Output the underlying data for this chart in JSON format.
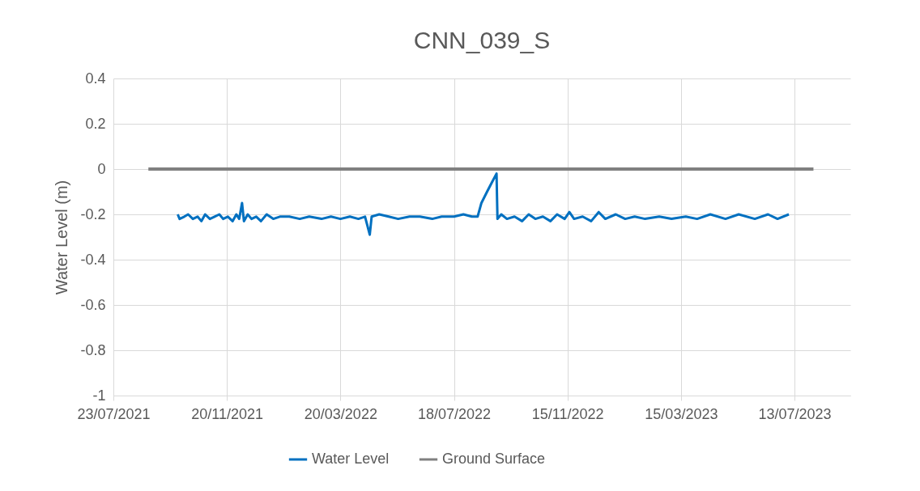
{
  "chart_data": {
    "type": "line",
    "title": "CNN_039_S",
    "ylabel": "Water Level (m)",
    "xlim": [
      "2021-07-23",
      "2023-09-10"
    ],
    "xticks": [
      {
        "value": "2021-07-23",
        "label": "23/07/2021"
      },
      {
        "value": "2021-11-20",
        "label": "20/11/2021"
      },
      {
        "value": "2022-03-20",
        "label": "20/03/2022"
      },
      {
        "value": "2022-07-18",
        "label": "18/07/2022"
      },
      {
        "value": "2022-11-15",
        "label": "15/11/2022"
      },
      {
        "value": "2023-03-15",
        "label": "15/03/2023"
      },
      {
        "value": "2023-07-13",
        "label": "13/07/2023"
      }
    ],
    "ylim": [
      -1,
      0.4
    ],
    "yticks": [
      -1,
      -0.8,
      -0.6,
      -0.4,
      -0.2,
      0,
      0.2,
      0.4
    ],
    "grid": true,
    "legend": "bottom",
    "series": [
      {
        "name": "Water Level",
        "color": "#0070c0",
        "x": [
          "2021-09-29",
          "2021-10-01",
          "2021-10-06",
          "2021-10-10",
          "2021-10-15",
          "2021-10-20",
          "2021-10-24",
          "2021-10-28",
          "2021-11-02",
          "2021-11-07",
          "2021-11-12",
          "2021-11-16",
          "2021-11-21",
          "2021-11-26",
          "2021-11-30",
          "2021-12-03",
          "2021-12-06",
          "2021-12-08",
          "2021-12-12",
          "2021-12-16",
          "2021-12-21",
          "2021-12-26",
          "2022-01-01",
          "2022-01-08",
          "2022-01-15",
          "2022-01-25",
          "2022-02-05",
          "2022-02-15",
          "2022-02-28",
          "2022-03-10",
          "2022-03-20",
          "2022-03-30",
          "2022-04-08",
          "2022-04-15",
          "2022-04-20",
          "2022-04-22",
          "2022-04-30",
          "2022-05-10",
          "2022-05-20",
          "2022-06-01",
          "2022-06-12",
          "2022-06-25",
          "2022-07-05",
          "2022-07-18",
          "2022-07-28",
          "2022-08-06",
          "2022-08-12",
          "2022-08-16",
          "2022-08-22",
          "2022-08-27",
          "2022-09-01",
          "2022-09-02",
          "2022-09-06",
          "2022-09-12",
          "2022-09-20",
          "2022-09-28",
          "2022-10-05",
          "2022-10-12",
          "2022-10-20",
          "2022-10-28",
          "2022-11-04",
          "2022-11-12",
          "2022-11-17",
          "2022-11-22",
          "2022-12-01",
          "2022-12-10",
          "2022-12-18",
          "2022-12-25",
          "2023-01-05",
          "2023-01-15",
          "2023-01-25",
          "2023-02-05",
          "2023-02-20",
          "2023-03-05",
          "2023-03-20",
          "2023-04-01",
          "2023-04-15",
          "2023-05-01",
          "2023-05-15",
          "2023-06-01",
          "2023-06-15",
          "2023-06-25",
          "2023-07-07"
        ],
        "values": [
          -0.2,
          -0.22,
          -0.21,
          -0.2,
          -0.22,
          -0.21,
          -0.23,
          -0.2,
          -0.22,
          -0.21,
          -0.2,
          -0.22,
          -0.21,
          -0.23,
          -0.2,
          -0.22,
          -0.15,
          -0.23,
          -0.2,
          -0.22,
          -0.21,
          -0.23,
          -0.2,
          -0.22,
          -0.21,
          -0.21,
          -0.22,
          -0.21,
          -0.22,
          -0.21,
          -0.22,
          -0.21,
          -0.22,
          -0.21,
          -0.29,
          -0.21,
          -0.2,
          -0.21,
          -0.22,
          -0.21,
          -0.21,
          -0.22,
          -0.21,
          -0.21,
          -0.2,
          -0.21,
          -0.21,
          -0.15,
          -0.1,
          -0.06,
          -0.02,
          -0.22,
          -0.2,
          -0.22,
          -0.21,
          -0.23,
          -0.2,
          -0.22,
          -0.21,
          -0.23,
          -0.2,
          -0.22,
          -0.19,
          -0.22,
          -0.21,
          -0.23,
          -0.19,
          -0.22,
          -0.2,
          -0.22,
          -0.21,
          -0.22,
          -0.21,
          -0.22,
          -0.21,
          -0.22,
          -0.2,
          -0.22,
          -0.2,
          -0.22,
          -0.2,
          -0.22,
          -0.2
        ]
      },
      {
        "name": "Ground Surface",
        "color": "#808080",
        "x": [
          "2021-08-29",
          "2023-08-02"
        ],
        "values": [
          0,
          0
        ]
      }
    ]
  }
}
